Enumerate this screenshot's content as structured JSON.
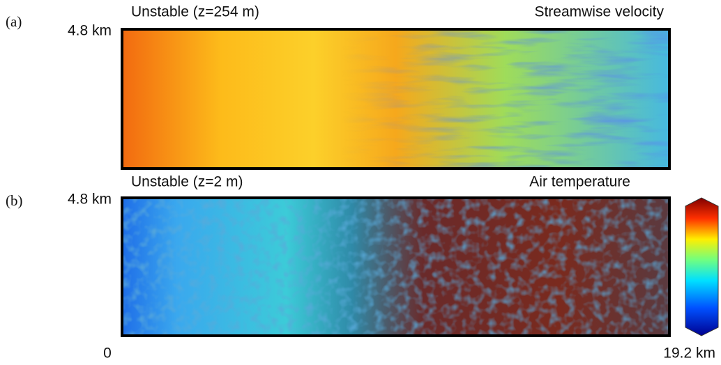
{
  "panels": [
    {
      "label": "(a)",
      "y_top_label": "4.8 km",
      "title_left": "Unstable (z=254 m)",
      "title_right": "Streamwise velocity"
    },
    {
      "label": "(b)",
      "y_top_label": "4.8 km",
      "title_left": "Unstable (z=2 m)",
      "title_right": "Air temperature"
    }
  ],
  "x_axis": {
    "start": "0",
    "end": "19.2 km"
  }
}
